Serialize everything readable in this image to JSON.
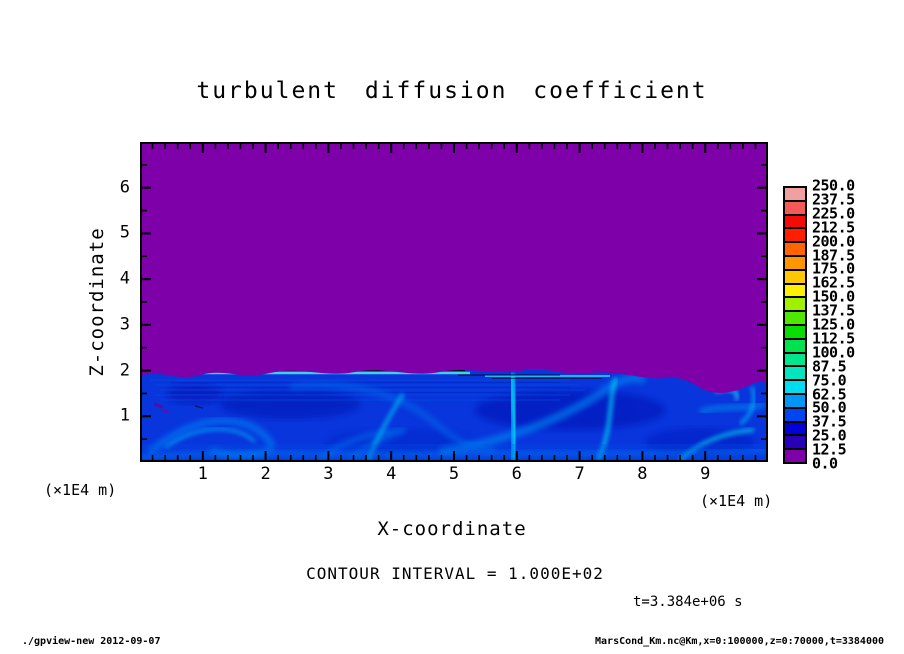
{
  "title": "turbulent diffusion coefficient",
  "plot": {
    "x_axis_label": "X-coordinate",
    "z_axis_label": "Z-coordinate",
    "x_unit_left": "(×1E4 m)",
    "x_unit_right": "(×1E4 m)",
    "contour_note": "CONTOUR INTERVAL = 1.000E+02",
    "time_note": "t=3.384e+06 s"
  },
  "axes": {
    "x": {
      "tick_labels": [
        "1",
        "2",
        "3",
        "4",
        "5",
        "6",
        "7",
        "8",
        "9"
      ],
      "range": [
        0,
        10
      ],
      "minor_step": 0.2
    },
    "z": {
      "tick_labels": [
        "1",
        "2",
        "3",
        "4",
        "5",
        "6"
      ],
      "range": [
        0,
        7
      ],
      "minor_step": 0.5
    }
  },
  "colorbar": {
    "labels_top_to_bottom": [
      "250.0",
      "237.5",
      "225.0",
      "212.5",
      "200.0",
      "187.5",
      "175.0",
      "162.5",
      "150.0",
      "137.5",
      "125.0",
      "112.5",
      "100.0",
      "87.5",
      "75.0",
      "62.5",
      "50.0",
      "37.5",
      "25.0",
      "12.5",
      "0.0"
    ],
    "colors_bottom_to_top": [
      "#7D00A8",
      "#2800B9",
      "#0000D7",
      "#0046F0",
      "#0096F5",
      "#00DCF0",
      "#00E6BE",
      "#00E68C",
      "#00E150",
      "#0ADC00",
      "#50E600",
      "#A0F000",
      "#FFF000",
      "#FFC800",
      "#FF9600",
      "#FF6400",
      "#FF1E00",
      "#F50A0A",
      "#F55A5A",
      "#F0A0A0"
    ]
  },
  "footer": {
    "left": "./gpview-new  2012-09-07",
    "right": "MarsCond_Km.nc@Km,x=0:100000,z=0:70000,t=3384000"
  },
  "field_colors": {
    "background_purple": "#7D00A8",
    "base_blue": "#0835DC",
    "plume_cyan": "#00DCF5"
  },
  "chart_data": {
    "type": "heatmap",
    "title": "turbulent diffusion coefficient",
    "xlabel": "X-coordinate",
    "ylabel": "Z-coordinate",
    "x_unit": "×1E4 m",
    "z_unit": "×1E4 m",
    "x_range_m": [
      0,
      100000
    ],
    "z_range_m": [
      0,
      70000
    ],
    "x_tick_values": [
      1,
      2,
      3,
      4,
      5,
      6,
      7,
      8,
      9
    ],
    "z_tick_values": [
      1,
      2,
      3,
      4,
      5,
      6
    ],
    "time_s": 3384000,
    "contour_interval": 100,
    "color_scale": {
      "min": 0.0,
      "max": 250.0,
      "step": 12.5,
      "legend_position": "right"
    },
    "field_summary": [
      {
        "region": "z above ~20000 m (z>2 on axis)",
        "value": "~0, uniform purple (below first contour level)"
      },
      {
        "region": "z below ~20000 m (z<2 on axis)",
        "value": "turbulent boundary layer, eddies roughly 10-90 shown as dark blue background with lighter blue swirls and bright cyan plumes near x=4, 5, 6-6.5 and x=8.5-9.5"
      },
      {
        "region": "interface at z≈2",
        "value": "thin bright cyan and black contour line segments between x≈1 and x≈5.3; purple dips slightly deeper near x≈8.8"
      }
    ]
  }
}
